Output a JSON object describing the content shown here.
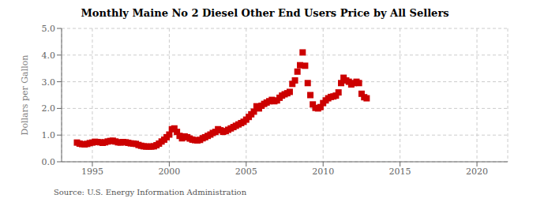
{
  "chart_data": {
    "type": "scatter",
    "title": "Monthly Maine No 2 Diesel Other End Users Price by All Sellers",
    "y_label": "Dollars per Gallon",
    "annotation": "Source: U.S. Energy Information Administration",
    "color": "#cc0000",
    "marker": "square",
    "grid": true,
    "xlim": [
      1993.0,
      2022.0
    ],
    "ylim": [
      0.0,
      5.0
    ],
    "xticks": [
      1995,
      2000,
      2005,
      2010,
      2015,
      2020
    ],
    "yticks": [
      {
        "value": 0.0,
        "label": "0.0"
      },
      {
        "value": 1.0,
        "label": "1.0"
      },
      {
        "value": 2.0,
        "label": "2.0"
      },
      {
        "value": 3.0,
        "label": "3.0"
      },
      {
        "value": 4.0,
        "label": "4.0"
      },
      {
        "value": 5.0,
        "label": "5.0"
      }
    ],
    "x": [
      1994.0,
      1994.17,
      1994.33,
      1994.5,
      1994.67,
      1994.83,
      1995.0,
      1995.17,
      1995.33,
      1995.5,
      1995.67,
      1995.83,
      1996.0,
      1996.17,
      1996.33,
      1996.5,
      1996.67,
      1996.83,
      1997.0,
      1997.17,
      1997.33,
      1997.5,
      1997.67,
      1997.83,
      1998.0,
      1998.17,
      1998.33,
      1998.5,
      1998.67,
      1998.83,
      1999.0,
      1999.17,
      1999.33,
      1999.5,
      1999.67,
      1999.83,
      2000.0,
      2000.17,
      2000.33,
      2000.5,
      2000.67,
      2000.83,
      2001.0,
      2001.17,
      2001.33,
      2001.5,
      2001.67,
      2001.83,
      2002.0,
      2002.17,
      2002.33,
      2002.5,
      2002.67,
      2002.83,
      2003.0,
      2003.17,
      2003.33,
      2003.5,
      2003.67,
      2003.83,
      2004.0,
      2004.17,
      2004.33,
      2004.5,
      2004.67,
      2004.83,
      2005.0,
      2005.17,
      2005.33,
      2005.5,
      2005.67,
      2005.83,
      2006.0,
      2006.17,
      2006.33,
      2006.5,
      2006.67,
      2006.83,
      2007.0,
      2007.17,
      2007.33,
      2007.5,
      2007.67,
      2007.83,
      2008.0,
      2008.17,
      2008.33,
      2008.5,
      2008.67,
      2008.83,
      2009.0,
      2009.17,
      2009.33,
      2009.5,
      2009.67,
      2009.83,
      2010.0,
      2010.17,
      2010.33,
      2010.5,
      2010.67,
      2010.83,
      2011.0,
      2011.17,
      2011.33,
      2011.5,
      2011.67,
      2011.83,
      2012.0,
      2012.17,
      2012.33,
      2012.5,
      2012.67,
      2012.83
    ],
    "values": [
      0.72,
      0.68,
      0.66,
      0.65,
      0.67,
      0.7,
      0.72,
      0.75,
      0.74,
      0.73,
      0.71,
      0.73,
      0.76,
      0.78,
      0.79,
      0.76,
      0.73,
      0.72,
      0.74,
      0.73,
      0.71,
      0.69,
      0.68,
      0.67,
      0.63,
      0.6,
      0.58,
      0.57,
      0.57,
      0.57,
      0.58,
      0.62,
      0.68,
      0.76,
      0.83,
      0.92,
      1.02,
      1.22,
      1.25,
      1.12,
      0.97,
      0.88,
      0.95,
      0.92,
      0.87,
      0.83,
      0.81,
      0.8,
      0.82,
      0.88,
      0.92,
      0.97,
      1.02,
      1.08,
      1.12,
      1.22,
      1.18,
      1.12,
      1.15,
      1.2,
      1.25,
      1.3,
      1.35,
      1.4,
      1.45,
      1.5,
      1.58,
      1.68,
      1.78,
      1.88,
      2.08,
      2.0,
      2.1,
      2.17,
      2.22,
      2.27,
      2.32,
      2.27,
      2.3,
      2.4,
      2.48,
      2.53,
      2.57,
      2.62,
      2.92,
      3.05,
      3.38,
      3.62,
      4.1,
      3.6,
      2.95,
      2.5,
      2.15,
      2.02,
      2.0,
      2.05,
      2.2,
      2.3,
      2.38,
      2.43,
      2.45,
      2.48,
      2.6,
      2.95,
      3.15,
      3.05,
      3.0,
      2.9,
      2.95,
      3.0,
      2.95,
      2.55,
      2.42,
      2.38
    ]
  }
}
